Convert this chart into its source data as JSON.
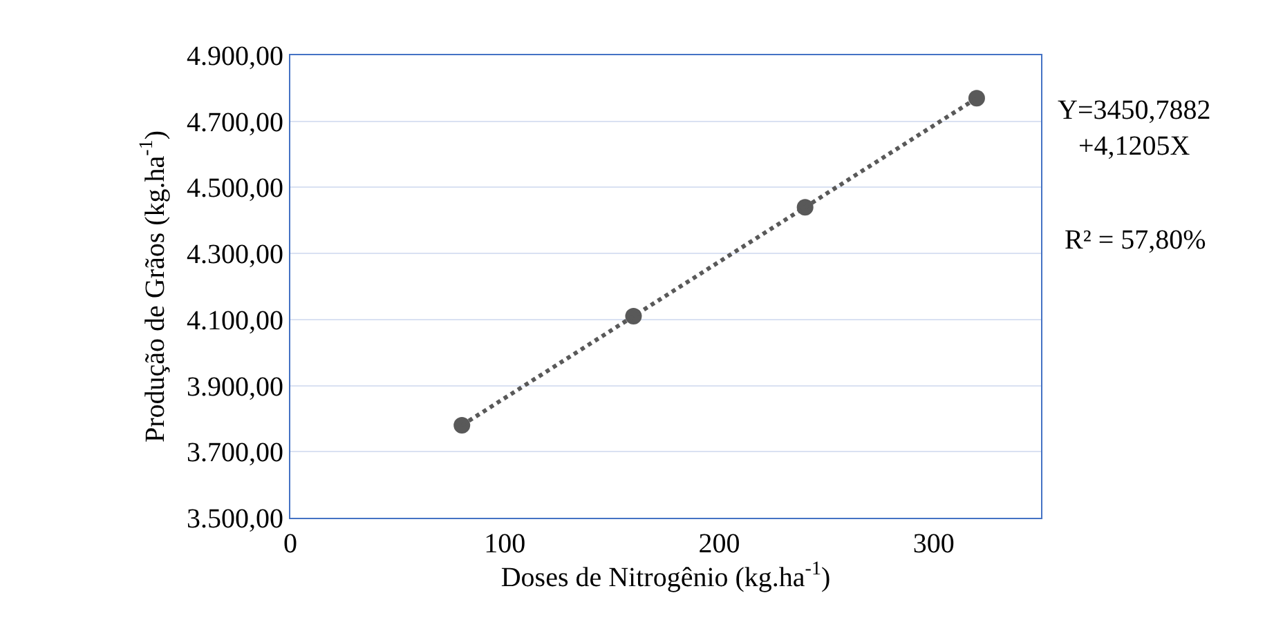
{
  "chart_data": {
    "type": "scatter",
    "xlabel": "Doses de Nitrogênio (kg.ha$^{-1}$)",
    "ylabel": "Produção de Grãos (kg.ha$^{-1}$)",
    "xlim": [
      0,
      350
    ],
    "xticks": [
      0,
      100,
      200,
      300
    ],
    "ylim": [
      3500,
      4900
    ],
    "yticks": [
      {
        "value": 3500,
        "label": "3.500,00"
      },
      {
        "value": 3700,
        "label": "3.700,00"
      },
      {
        "value": 3900,
        "label": "3.900,00"
      },
      {
        "value": 4100,
        "label": "4.100,00"
      },
      {
        "value": 4300,
        "label": "4.300,00"
      },
      {
        "value": 4500,
        "label": "4.500,00"
      },
      {
        "value": 4700,
        "label": "4.700,00"
      },
      {
        "value": 4900,
        "label": "4.900,00"
      }
    ],
    "grid": "y",
    "series": [
      {
        "color": "#595959",
        "marker": "circle",
        "x": [
          80,
          160,
          240,
          320
        ],
        "values": [
          3780,
          4110,
          4440,
          4770
        ]
      },
      {
        "type": "line",
        "color": "#595959",
        "line_style": "dotted",
        "x": [
          80,
          320
        ],
        "values": [
          3780,
          4770
        ]
      }
    ],
    "annotations": [
      "Y=3450,7882\n+4,1205X",
      "R² = 57,80%"
    ]
  }
}
